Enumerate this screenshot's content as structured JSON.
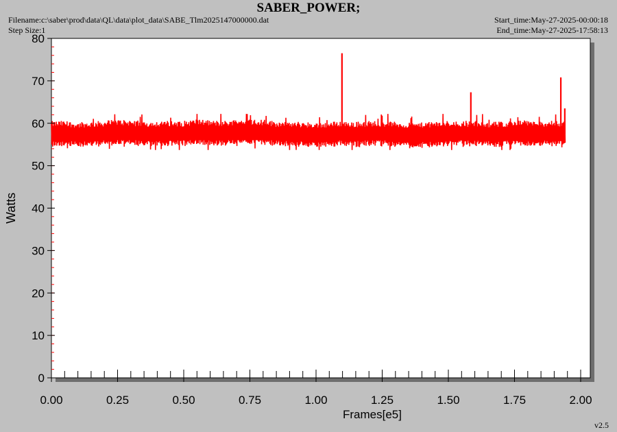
{
  "header": {
    "title": "SABER_POWER;",
    "filename_label": "Filename:c:\\saber\\prod\\data\\QL\\data\\plot_data\\SABE_Tlm2025147000000.dat",
    "step_size_label": "Step Size:1",
    "start_time_label": "Start_time:May-27-2025-00:00:18",
    "end_time_label": "End_time:May-27-2025-17:58:13"
  },
  "version": "v2.5",
  "colors": {
    "background": "#c0c0c0",
    "plot_area": "#ffffff",
    "shadow": "#6e6e6e",
    "series": "#ff0000",
    "y_minor_ticks": "#ff0000",
    "axis": "#000000"
  },
  "chart_data": {
    "type": "line",
    "title": "SABER_POWER;",
    "xlabel": "Frames[e5]",
    "ylabel": "Watts",
    "xlim": [
      0.0,
      2.0
    ],
    "ylim": [
      0,
      80
    ],
    "x_ticks": [
      "0.00",
      "0.25",
      "0.50",
      "0.75",
      "1.00",
      "1.25",
      "1.50",
      "1.75",
      "2.00"
    ],
    "y_ticks": [
      "0",
      "10",
      "20",
      "30",
      "40",
      "50",
      "60",
      "70",
      "80"
    ],
    "grid": false,
    "legend": "none",
    "series": [
      {
        "color": "#ff0000",
        "x_range": [
          0.0,
          1.94
        ],
        "baseline": 57.5,
        "band": [
          54.5,
          61.0
        ],
        "x": [
          0.0,
          0.05,
          0.1,
          0.15,
          0.2,
          0.25,
          0.3,
          0.35,
          0.4,
          0.45,
          0.5,
          0.55,
          0.6,
          0.65,
          0.7,
          0.75,
          0.8,
          0.85,
          0.9,
          0.95,
          1.0,
          1.05,
          1.09,
          1.1,
          1.15,
          1.2,
          1.25,
          1.3,
          1.35,
          1.4,
          1.45,
          1.5,
          1.55,
          1.58,
          1.6,
          1.65,
          1.7,
          1.75,
          1.8,
          1.85,
          1.9,
          1.93,
          1.94
        ],
        "y": [
          57.5,
          57.6,
          57.2,
          57.4,
          57.6,
          57.9,
          57.8,
          57.5,
          57.5,
          57.6,
          57.6,
          58.0,
          57.7,
          57.6,
          58.0,
          58.0,
          57.9,
          57.5,
          57.4,
          57.4,
          57.2,
          57.3,
          57.6,
          76.5,
          57.4,
          57.6,
          57.6,
          57.4,
          57.1,
          57.2,
          57.4,
          57.6,
          57.6,
          67.3,
          57.6,
          57.4,
          57.4,
          57.7,
          57.6,
          57.5,
          57.6,
          70.8,
          58.0
        ],
        "spikes": [
          {
            "x": 1.098,
            "y": 76.5
          },
          {
            "x": 1.585,
            "y": 67.3
          },
          {
            "x": 1.925,
            "y": 70.8
          },
          {
            "x": 1.94,
            "y": 63.5
          }
        ]
      }
    ]
  }
}
